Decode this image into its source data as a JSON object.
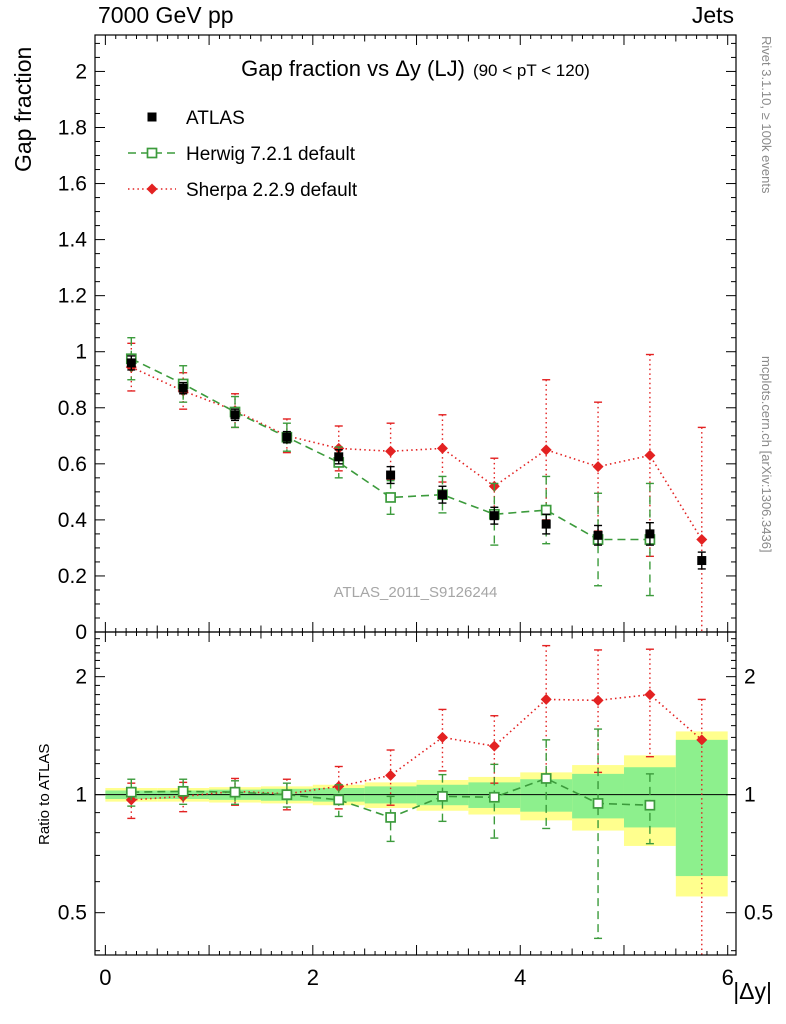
{
  "chart_data": {
    "type": "line",
    "header_left": "7000 GeV pp",
    "header_right": "Jets",
    "title": "Gap fraction vs Δy (LJ)",
    "title_suffix": "(90 < pT < 120)",
    "xlabel": "|Δy|",
    "ylabel_top": "Gap fraction",
    "ylabel_bottom": "Ratio to ATLAS",
    "watermark": "ATLAS_2011_S9126244",
    "note_right_top": "Rivet 3.1.10, ≥ 100k events",
    "note_right_bottom": "mcplots.cern.ch [arXiv:1306.3436]",
    "xlim": [
      -0.1,
      6.08
    ],
    "top_ylim": [
      0,
      2.13
    ],
    "ratio_ylim": [
      0.39,
      2.6
    ],
    "xticks": [
      0,
      2,
      4,
      6
    ],
    "top_yticks": [
      0,
      0.2,
      0.4,
      0.6,
      0.8,
      1.0,
      1.2,
      1.4,
      1.6,
      1.8,
      2.0
    ],
    "ratio_yticks": [
      0.5,
      1,
      2
    ],
    "x": [
      0.25,
      0.75,
      1.25,
      1.75,
      2.25,
      2.75,
      3.25,
      3.75,
      4.25,
      4.75,
      5.25,
      5.75
    ],
    "series": [
      {
        "name": "ATLAS",
        "color": "#000000",
        "marker": "square-filled",
        "line": "none",
        "values": [
          0.96,
          0.87,
          0.775,
          0.695,
          0.625,
          0.56,
          0.49,
          0.415,
          0.385,
          0.345,
          0.35,
          0.255
        ],
        "errors": [
          0.025,
          0.02,
          0.02,
          0.02,
          0.025,
          0.03,
          0.03,
          0.03,
          0.035,
          0.035,
          0.04,
          0.03
        ]
      },
      {
        "name": "Herwig 7.2.1 default",
        "color": "#3c9b3c",
        "marker": "square-open",
        "line": "dashed",
        "values": [
          0.975,
          0.885,
          0.785,
          0.695,
          0.605,
          0.48,
          0.49,
          0.42,
          0.435,
          0.33,
          0.33,
          null
        ],
        "errors": [
          0.075,
          0.065,
          0.055,
          0.05,
          0.055,
          0.06,
          0.065,
          0.11,
          0.12,
          0.165,
          0.2,
          null
        ]
      },
      {
        "name": "Sherpa 2.2.9 default",
        "color": "#e32222",
        "marker": "diamond-filled",
        "line": "dotted",
        "values": [
          0.945,
          0.86,
          0.79,
          0.7,
          0.655,
          0.645,
          0.655,
          0.52,
          0.65,
          0.59,
          0.63,
          0.33
        ],
        "errors": [
          0.085,
          0.065,
          0.06,
          0.06,
          0.08,
          0.1,
          0.12,
          0.1,
          0.25,
          0.23,
          0.36,
          0.4
        ]
      }
    ],
    "ratio": {
      "herwig": {
        "values": [
          1.015,
          1.02,
          1.015,
          1.0,
          0.97,
          0.875,
          0.99,
          0.985,
          1.1,
          0.95,
          0.94,
          null
        ],
        "errors": [
          0.08,
          0.075,
          0.07,
          0.07,
          0.09,
          0.115,
          0.135,
          0.21,
          0.28,
          0.52,
          0.19,
          null
        ]
      },
      "sherpa": {
        "values": [
          0.97,
          0.99,
          1.02,
          1.005,
          1.05,
          1.12,
          1.4,
          1.33,
          1.75,
          1.74,
          1.8,
          1.38
        ],
        "errors": [
          0.1,
          0.085,
          0.08,
          0.09,
          0.13,
          0.18,
          0.25,
          0.26,
          0.65,
          0.6,
          0.55,
          [
            1.0,
            0.37
          ]
        ]
      },
      "band_yellow": [
        0.04,
        0.04,
        0.045,
        0.05,
        0.06,
        0.075,
        0.09,
        0.11,
        0.14,
        0.19,
        0.26,
        0.45
      ],
      "band_green": [
        0.025,
        0.025,
        0.03,
        0.035,
        0.04,
        0.05,
        0.06,
        0.075,
        0.095,
        0.13,
        0.175,
        0.38
      ]
    },
    "colors": {
      "band_outer": "#ffff8e",
      "band_inner": "#8df08d",
      "ratio_baseline": "#000000"
    }
  }
}
